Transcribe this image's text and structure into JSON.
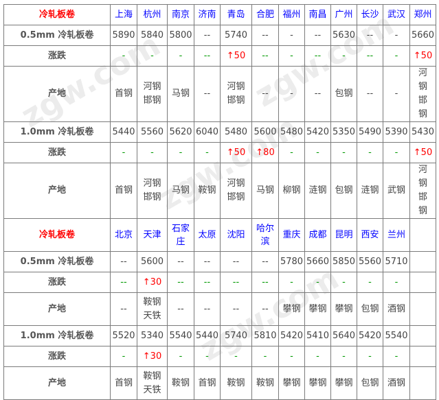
{
  "section1": {
    "title": "冷轧板卷",
    "cities": [
      "上海",
      "杭州",
      "南京",
      "济南",
      "青岛",
      "合肥",
      "福州",
      "南昌",
      "广州",
      "长沙",
      "武汉",
      "郑州"
    ],
    "rows": [
      {
        "label": "0.5mm 冷轧板卷",
        "type": "price",
        "values": [
          "5890",
          "5840",
          "5800",
          "--",
          "5740",
          "--",
          "-",
          "--",
          "5630",
          "--",
          "-",
          "5660"
        ]
      },
      {
        "label": "涨跌",
        "type": "change",
        "values": [
          "-",
          "-",
          "-",
          "--",
          "↑50",
          "--",
          "-",
          "--",
          "-",
          "--",
          "-",
          "↑50"
        ]
      },
      {
        "label": "产地",
        "type": "origin",
        "values": [
          "首钢",
          "河钢邯钢",
          "马钢",
          "--",
          "河钢邯钢",
          "--",
          "-",
          "--",
          "包钢",
          "--",
          "-",
          "河钢邯钢"
        ]
      },
      {
        "label": "1.0mm 冷轧板卷",
        "type": "price",
        "values": [
          "5440",
          "5560",
          "5620",
          "6040",
          "5480",
          "5600",
          "5480",
          "5420",
          "5350",
          "5490",
          "5390",
          "5430"
        ]
      },
      {
        "label": "涨跌",
        "type": "change",
        "values": [
          "-",
          "-",
          "-",
          "-",
          "↑50",
          "↑80",
          "-",
          "-",
          "-",
          "-",
          "-",
          "↑50"
        ]
      },
      {
        "label": "产地",
        "type": "origin",
        "values": [
          "首钢",
          "河钢邯钢",
          "马钢",
          "鞍钢",
          "河钢邯钢",
          "马钢",
          "柳钢",
          "涟钢",
          "包钢",
          "涟钢",
          "武钢",
          "河钢邯钢"
        ]
      }
    ]
  },
  "section2": {
    "title": "冷轧板卷",
    "cities": [
      "北京",
      "天津",
      "石家庄",
      "太原",
      "沈阳",
      "哈尔滨",
      "重庆",
      "成都",
      "昆明",
      "西安",
      "兰州",
      ""
    ],
    "rows": [
      {
        "label": "0.5mm 冷轧板卷",
        "type": "price",
        "values": [
          "--",
          "5600",
          "--",
          "--",
          "--",
          "--",
          "5780",
          "5660",
          "5850",
          "5560",
          "5710",
          ""
        ]
      },
      {
        "label": "涨跌",
        "type": "change",
        "values": [
          "--",
          "↑30",
          "--",
          "--",
          "--",
          "--",
          "-",
          "-",
          "-",
          "-",
          "-",
          ""
        ]
      },
      {
        "label": "产地",
        "type": "origin",
        "values": [
          "--",
          "鞍钢天铁",
          "--",
          "--",
          "--",
          "--",
          "攀钢",
          "攀钢",
          "攀钢",
          "包钢",
          "酒钢",
          ""
        ]
      },
      {
        "label": "1.0mm 冷轧板卷",
        "type": "price",
        "values": [
          "5520",
          "5340",
          "5540",
          "5440",
          "5740",
          "5810",
          "5420",
          "5410",
          "5640",
          "5420",
          "5540",
          ""
        ]
      },
      {
        "label": "涨跌",
        "type": "change",
        "values": [
          "-",
          "↑30",
          "-",
          "-",
          "-",
          "-",
          "-",
          "-",
          "-",
          "-",
          "-",
          ""
        ]
      },
      {
        "label": "产地",
        "type": "origin",
        "values": [
          "首钢",
          "鞍钢天铁",
          "鞍钢",
          "首钢",
          "鞍钢",
          "鞍钢",
          "攀钢",
          "攀钢",
          "攀钢",
          "包钢",
          "酒钢",
          ""
        ]
      }
    ]
  },
  "watermark": "zgw.com 中钢网 中国互联网百强企业",
  "colors": {
    "header": "#ff0000",
    "city": "#0000ff",
    "up": "#ff0000",
    "flat": "#009900"
  }
}
